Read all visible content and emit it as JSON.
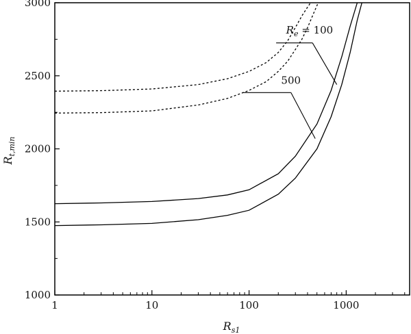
{
  "chart_data": {
    "type": "line",
    "title": "",
    "xlabel": {
      "main": "R",
      "sub": "s1"
    },
    "ylabel": {
      "main": "R",
      "sub": "t,min"
    },
    "xscale": "log",
    "xlim": [
      1,
      4500
    ],
    "ylim": [
      1000,
      3000
    ],
    "xticks": [
      {
        "value": 1,
        "label": "1"
      },
      {
        "value": 10,
        "label": "10"
      },
      {
        "value": 100,
        "label": "100"
      },
      {
        "value": 1000,
        "label": "1000"
      }
    ],
    "yticks": [
      {
        "value": 1000,
        "label": "1000"
      },
      {
        "value": 1500,
        "label": "1500"
      },
      {
        "value": 2000,
        "label": "2000"
      },
      {
        "value": 2500,
        "label": "2500"
      },
      {
        "value": 3000,
        "label": "3000"
      }
    ],
    "grid": false,
    "legend": "none",
    "series": [
      {
        "style": "dashed",
        "x": [
          1,
          3,
          10,
          30,
          60,
          100,
          150,
          200,
          250,
          300,
          350,
          400,
          430,
          450
        ],
        "y": [
          2395,
          2398,
          2410,
          2440,
          2480,
          2530,
          2590,
          2660,
          2740,
          2830,
          2910,
          2970,
          3000,
          3010
        ]
      },
      {
        "style": "dashed",
        "x": [
          1,
          3,
          10,
          30,
          60,
          100,
          150,
          200,
          250,
          300,
          350,
          400,
          450,
          500,
          520
        ],
        "y": [
          2245,
          2248,
          2260,
          2300,
          2345,
          2400,
          2460,
          2530,
          2600,
          2680,
          2750,
          2830,
          2910,
          2980,
          3010
        ]
      },
      {
        "style": "solid",
        "x": [
          1,
          3,
          10,
          30,
          60,
          100,
          200,
          300,
          500,
          700,
          900,
          1100,
          1300,
          1400
        ],
        "y": [
          1625,
          1630,
          1640,
          1660,
          1685,
          1720,
          1830,
          1950,
          2170,
          2400,
          2630,
          2840,
          3000,
          3060
        ]
      },
      {
        "style": "solid",
        "x": [
          1,
          3,
          10,
          30,
          60,
          100,
          200,
          300,
          500,
          700,
          900,
          1100,
          1300,
          1450,
          1500
        ],
        "y": [
          1475,
          1480,
          1490,
          1515,
          1545,
          1580,
          1690,
          1800,
          2000,
          2220,
          2440,
          2660,
          2880,
          3000,
          3040
        ]
      }
    ],
    "annotations": [
      {
        "text": {
          "main": "R",
          "sub": "e",
          "rest": " = 100"
        },
        "label_at": {
          "x": 420,
          "y": 2790
        },
        "shelf": {
          "x1": 190,
          "x2": 450,
          "y": 2725
        },
        "leaders": [
          {
            "x": 800,
            "y": 2440
          }
        ]
      },
      {
        "text": {
          "main": "500"
        },
        "label_at": {
          "x": 270,
          "y": 2445
        },
        "shelf": {
          "x1": 85,
          "x2": 270,
          "y": 2385
        },
        "leaders": [
          {
            "x": 480,
            "y": 2070
          }
        ]
      }
    ]
  }
}
